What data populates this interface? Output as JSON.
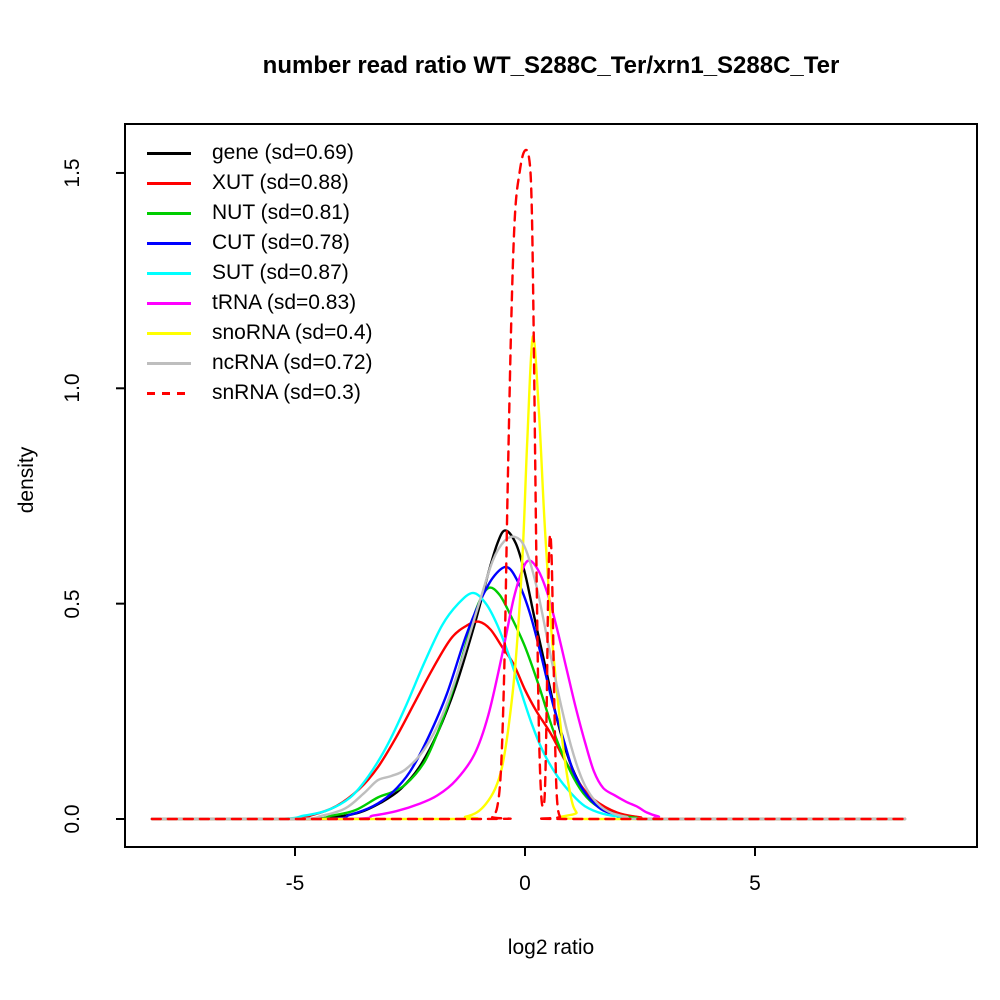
{
  "title": "number read ratio WT_S288C_Ter/xrn1_S288C_Ter",
  "chart_data": {
    "type": "line",
    "subtype": "density-curves",
    "title": "number read ratio WT_S288C_Ter/xrn1_S288C_Ter",
    "xlabel": "log2 ratio",
    "ylabel": "density",
    "xlim": [
      -8.7,
      9.83
    ],
    "ylim": [
      0,
      1.61
    ],
    "grid": false,
    "legend_position": "top-left",
    "xticks": [
      {
        "value": -5,
        "label": "-5"
      },
      {
        "value": 0,
        "label": "0"
      },
      {
        "value": 5,
        "label": "5"
      }
    ],
    "yticks": [
      {
        "value": 0.0,
        "label": "0.0"
      },
      {
        "value": 0.5,
        "label": "0.5"
      },
      {
        "value": 1.0,
        "label": "1.0"
      },
      {
        "value": 1.5,
        "label": "1.5"
      }
    ],
    "series": [
      {
        "name": "gene",
        "legend_label": "gene (sd=0.69)",
        "sd": 0.69,
        "color": "#000000",
        "dash": false,
        "points": [
          [
            -8.11,
            0
          ],
          [
            -5.0,
            0
          ],
          [
            -4.2,
            0.004
          ],
          [
            -3.6,
            0.015
          ],
          [
            -3.1,
            0.04
          ],
          [
            -2.7,
            0.07
          ],
          [
            -2.3,
            0.12
          ],
          [
            -1.9,
            0.2
          ],
          [
            -1.5,
            0.31
          ],
          [
            -1.1,
            0.45
          ],
          [
            -0.8,
            0.57
          ],
          [
            -0.6,
            0.64
          ],
          [
            -0.43,
            0.67
          ],
          [
            -0.2,
            0.64
          ],
          [
            0,
            0.57
          ],
          [
            0.2,
            0.47
          ],
          [
            0.45,
            0.35
          ],
          [
            0.7,
            0.23
          ],
          [
            0.95,
            0.14
          ],
          [
            1.2,
            0.08
          ],
          [
            1.5,
            0.04
          ],
          [
            1.9,
            0.015
          ],
          [
            2.4,
            0.005
          ],
          [
            3,
            0
          ],
          [
            8.26,
            0
          ]
        ]
      },
      {
        "name": "XUT",
        "legend_label": "XUT (sd=0.88)",
        "sd": 0.88,
        "color": "#FF0000",
        "dash": false,
        "points": [
          [
            -8.11,
            0
          ],
          [
            -5.2,
            0
          ],
          [
            -4.6,
            0.01
          ],
          [
            -4.1,
            0.03
          ],
          [
            -3.6,
            0.07
          ],
          [
            -3.2,
            0.12
          ],
          [
            -2.8,
            0.19
          ],
          [
            -2.4,
            0.27
          ],
          [
            -2.0,
            0.35
          ],
          [
            -1.6,
            0.42
          ],
          [
            -1.25,
            0.45
          ],
          [
            -1.0,
            0.458
          ],
          [
            -0.75,
            0.44
          ],
          [
            -0.5,
            0.4
          ],
          [
            -0.25,
            0.36
          ],
          [
            0,
            0.3
          ],
          [
            0.25,
            0.25
          ],
          [
            0.55,
            0.2
          ],
          [
            0.9,
            0.13
          ],
          [
            1.2,
            0.08
          ],
          [
            1.5,
            0.045
          ],
          [
            2,
            0.015
          ],
          [
            2.5,
            0.004
          ],
          [
            3,
            0
          ],
          [
            8.26,
            0
          ]
        ]
      },
      {
        "name": "NUT",
        "legend_label": "NUT (sd=0.81)",
        "sd": 0.81,
        "color": "#00CD00",
        "dash": false,
        "points": [
          [
            -8.11,
            0
          ],
          [
            -4.8,
            0
          ],
          [
            -4.2,
            0.008
          ],
          [
            -3.7,
            0.02
          ],
          [
            -3.2,
            0.05
          ],
          [
            -2.9,
            0.062
          ],
          [
            -2.6,
            0.08
          ],
          [
            -2.2,
            0.13
          ],
          [
            -1.9,
            0.2
          ],
          [
            -1.6,
            0.29
          ],
          [
            -1.3,
            0.4
          ],
          [
            -1.05,
            0.49
          ],
          [
            -0.8,
            0.536
          ],
          [
            -0.55,
            0.52
          ],
          [
            -0.3,
            0.47
          ],
          [
            0,
            0.4
          ],
          [
            0.3,
            0.31
          ],
          [
            0.6,
            0.21
          ],
          [
            0.9,
            0.13
          ],
          [
            1.2,
            0.07
          ],
          [
            1.5,
            0.035
          ],
          [
            1.9,
            0.012
          ],
          [
            2.4,
            0.003
          ],
          [
            3,
            0
          ],
          [
            8.26,
            0
          ]
        ]
      },
      {
        "name": "CUT",
        "legend_label": "CUT (sd=0.78)",
        "sd": 0.78,
        "color": "#0000FF",
        "dash": false,
        "points": [
          [
            -8.11,
            0
          ],
          [
            -4.4,
            0
          ],
          [
            -3.8,
            0.01
          ],
          [
            -3.3,
            0.03
          ],
          [
            -2.9,
            0.06
          ],
          [
            -2.5,
            0.11
          ],
          [
            -2.1,
            0.19
          ],
          [
            -1.7,
            0.29
          ],
          [
            -1.3,
            0.42
          ],
          [
            -1.0,
            0.5
          ],
          [
            -0.7,
            0.56
          ],
          [
            -0.4,
            0.585
          ],
          [
            -0.15,
            0.55
          ],
          [
            0.1,
            0.48
          ],
          [
            0.35,
            0.38
          ],
          [
            0.6,
            0.27
          ],
          [
            0.85,
            0.18
          ],
          [
            1.05,
            0.11
          ],
          [
            1.25,
            0.07
          ],
          [
            1.45,
            0.042
          ],
          [
            1.7,
            0.02
          ],
          [
            2.1,
            0.007
          ],
          [
            2.6,
            0
          ],
          [
            8.26,
            0
          ]
        ]
      },
      {
        "name": "SUT",
        "legend_label": "SUT (sd=0.87)",
        "sd": 0.87,
        "color": "#00FFFF",
        "dash": false,
        "points": [
          [
            -8.11,
            0
          ],
          [
            -5.4,
            0
          ],
          [
            -4.8,
            0.008
          ],
          [
            -4.3,
            0.02
          ],
          [
            -3.8,
            0.05
          ],
          [
            -3.4,
            0.1
          ],
          [
            -3.0,
            0.17
          ],
          [
            -2.6,
            0.26
          ],
          [
            -2.2,
            0.36
          ],
          [
            -1.8,
            0.45
          ],
          [
            -1.45,
            0.5
          ],
          [
            -1.13,
            0.525
          ],
          [
            -0.85,
            0.5
          ],
          [
            -0.6,
            0.45
          ],
          [
            -0.35,
            0.38
          ],
          [
            -0.1,
            0.3
          ],
          [
            0.15,
            0.22
          ],
          [
            0.4,
            0.155
          ],
          [
            0.7,
            0.1
          ],
          [
            1.0,
            0.06
          ],
          [
            1.3,
            0.03
          ],
          [
            1.7,
            0.012
          ],
          [
            2.2,
            0.004
          ],
          [
            2.8,
            0
          ],
          [
            8.26,
            0
          ]
        ]
      },
      {
        "name": "tRNA",
        "legend_label": "tRNA (sd=0.83)",
        "sd": 0.83,
        "color": "#FF00FF",
        "dash": false,
        "points": [
          [
            -8.11,
            0
          ],
          [
            -3.9,
            0
          ],
          [
            -3.3,
            0.008
          ],
          [
            -2.8,
            0.018
          ],
          [
            -2.3,
            0.035
          ],
          [
            -1.9,
            0.055
          ],
          [
            -1.5,
            0.09
          ],
          [
            -1.1,
            0.15
          ],
          [
            -0.8,
            0.24
          ],
          [
            -0.5,
            0.38
          ],
          [
            -0.25,
            0.51
          ],
          [
            -0.05,
            0.58
          ],
          [
            0.1,
            0.6
          ],
          [
            0.3,
            0.575
          ],
          [
            0.5,
            0.52
          ],
          [
            0.7,
            0.44
          ],
          [
            0.9,
            0.35
          ],
          [
            1.1,
            0.26
          ],
          [
            1.3,
            0.18
          ],
          [
            1.5,
            0.11
          ],
          [
            1.7,
            0.072
          ],
          [
            1.95,
            0.055
          ],
          [
            2.2,
            0.04
          ],
          [
            2.45,
            0.028
          ],
          [
            2.65,
            0.015
          ],
          [
            2.9,
            0.006
          ],
          [
            3.3,
            0
          ],
          [
            8.26,
            0
          ]
        ]
      },
      {
        "name": "snoRNA",
        "legend_label": "snoRNA (sd=0.4)",
        "sd": 0.4,
        "color": "#FFFF00",
        "dash": false,
        "points": [
          [
            -8.11,
            0
          ],
          [
            -1.6,
            0
          ],
          [
            -1.3,
            0.005
          ],
          [
            -1.05,
            0.015
          ],
          [
            -0.85,
            0.035
          ],
          [
            -0.65,
            0.07
          ],
          [
            -0.5,
            0.12
          ],
          [
            -0.35,
            0.22
          ],
          [
            -0.2,
            0.37
          ],
          [
            -0.05,
            0.62
          ],
          [
            0.05,
            0.88
          ],
          [
            0.17,
            1.12
          ],
          [
            0.3,
            0.95
          ],
          [
            0.42,
            0.7
          ],
          [
            0.55,
            0.47
          ],
          [
            0.7,
            0.29
          ],
          [
            0.85,
            0.15
          ],
          [
            1.0,
            0.05
          ],
          [
            1.12,
            0.015
          ],
          [
            1.3,
            0
          ],
          [
            8.26,
            0
          ]
        ]
      },
      {
        "name": "ncRNA",
        "legend_label": "ncRNA (sd=0.72)",
        "sd": 0.72,
        "color": "#BEBEBE",
        "dash": false,
        "points": [
          [
            -8.11,
            0
          ],
          [
            -5.0,
            0
          ],
          [
            -4.4,
            0.008
          ],
          [
            -3.9,
            0.025
          ],
          [
            -3.5,
            0.06
          ],
          [
            -3.2,
            0.09
          ],
          [
            -2.9,
            0.1
          ],
          [
            -2.6,
            0.115
          ],
          [
            -2.2,
            0.16
          ],
          [
            -1.8,
            0.24
          ],
          [
            -1.4,
            0.36
          ],
          [
            -1.0,
            0.5
          ],
          [
            -0.7,
            0.6
          ],
          [
            -0.45,
            0.645
          ],
          [
            -0.22,
            0.655
          ],
          [
            0,
            0.63
          ],
          [
            0.25,
            0.54
          ],
          [
            0.5,
            0.41
          ],
          [
            0.75,
            0.28
          ],
          [
            1.0,
            0.17
          ],
          [
            1.25,
            0.09
          ],
          [
            1.5,
            0.045
          ],
          [
            1.8,
            0.018
          ],
          [
            2.2,
            0.005
          ],
          [
            2.7,
            0
          ],
          [
            8.26,
            0
          ]
        ]
      },
      {
        "name": "snRNA",
        "legend_label": "snRNA (sd=0.3)",
        "sd": 0.3,
        "color": "#FF0000",
        "dash": true,
        "points": [
          [
            -8.11,
            0
          ],
          [
            -0.9,
            0
          ],
          [
            -0.72,
            0.005
          ],
          [
            -0.6,
            0.03
          ],
          [
            -0.52,
            0.12
          ],
          [
            -0.45,
            0.35
          ],
          [
            -0.38,
            0.75
          ],
          [
            -0.3,
            1.15
          ],
          [
            -0.22,
            1.4
          ],
          [
            -0.12,
            1.5
          ],
          [
            -0.02,
            1.549
          ],
          [
            0.08,
            1.54
          ],
          [
            0.14,
            1.45
          ],
          [
            0.18,
            1.2
          ],
          [
            0.22,
            0.85
          ],
          [
            0.26,
            0.5
          ],
          [
            0.3,
            0.22
          ],
          [
            0.34,
            0.08
          ],
          [
            0.38,
            0.03
          ],
          [
            0.43,
            0.06
          ],
          [
            0.47,
            0.25
          ],
          [
            0.5,
            0.5
          ],
          [
            0.54,
            0.655
          ],
          [
            0.58,
            0.6
          ],
          [
            0.62,
            0.38
          ],
          [
            0.66,
            0.15
          ],
          [
            0.7,
            0.04
          ],
          [
            0.76,
            0.005
          ],
          [
            0.85,
            0
          ],
          [
            8.26,
            0
          ]
        ]
      }
    ]
  }
}
